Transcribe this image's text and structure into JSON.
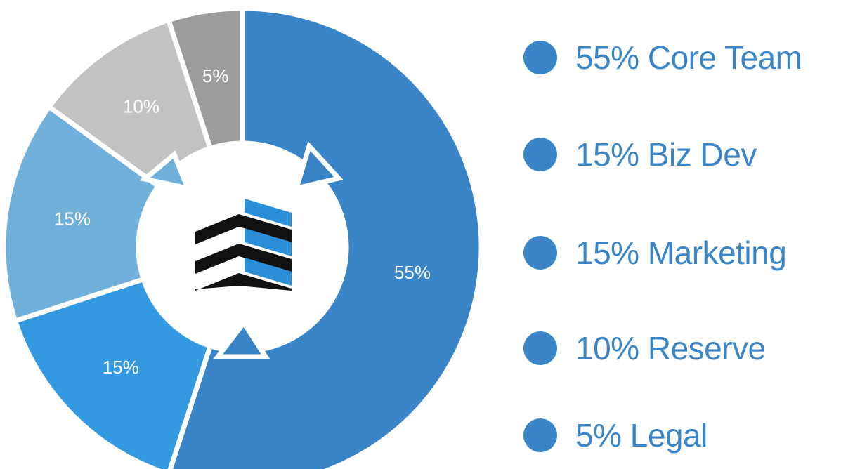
{
  "chart_data": {
    "type": "pie",
    "variant": "donut",
    "categories": [
      "Core Team",
      "Biz Dev",
      "Marketing",
      "Reserve",
      "Legal"
    ],
    "values": [
      55,
      15,
      15,
      10,
      5
    ],
    "slice_labels": [
      "55%",
      "15%",
      "15%",
      "10%",
      "5%"
    ],
    "colors": [
      "#3a85c8",
      "#3399e0",
      "#72b0dc",
      "#c2c2c2",
      "#9c9c9c"
    ],
    "legend": {
      "placement": "right",
      "color": "#3a85c8",
      "entries": [
        "55% Core Team",
        "15% Biz Dev",
        "15% Marketing",
        "10% Reserve",
        "5% Legal"
      ]
    },
    "center_icon": "stacked-building-logo",
    "title": "",
    "xlabel": "",
    "ylabel": ""
  }
}
